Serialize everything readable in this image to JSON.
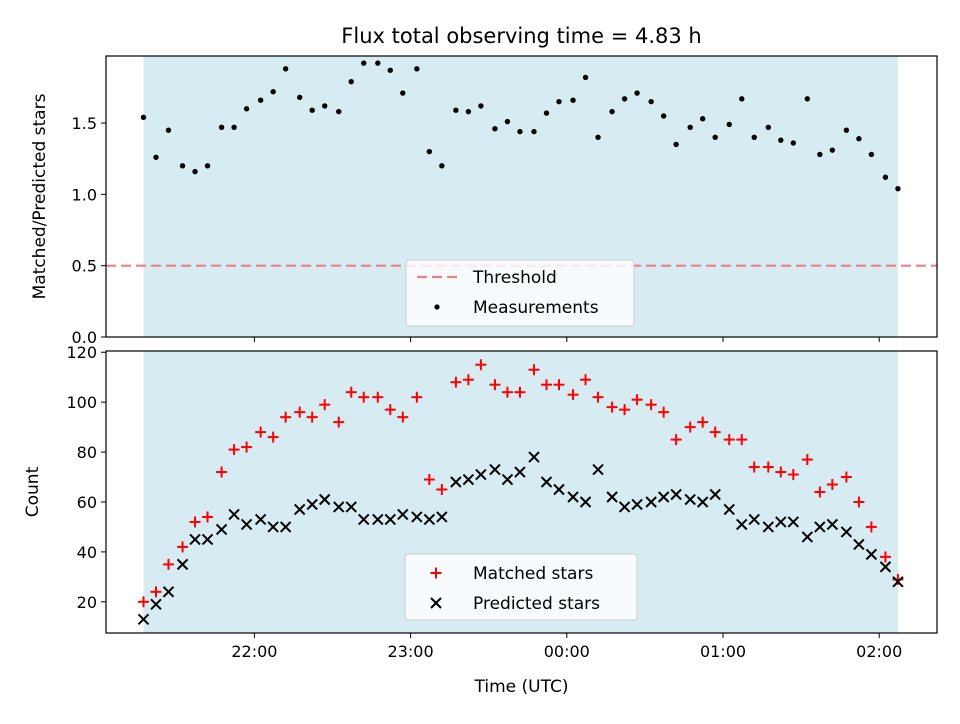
{
  "chart_data": [
    {
      "type": "scatter",
      "title": "Flux total observing time = 4.83 h",
      "xlabel": "",
      "ylabel": "Matched/Predicted stars",
      "ylim": [
        0,
        1.97
      ],
      "yticks": [
        "0.0",
        "0.5",
        "1.0",
        "1.5"
      ],
      "yticks_values": [
        0,
        0.5,
        1.0,
        1.5
      ],
      "shaded_interval_hours": [
        -2.71,
        2.12
      ],
      "threshold": {
        "name": "Threshold",
        "value": 0.5,
        "color": "#f08080"
      },
      "series": [
        {
          "name": "Measurements",
          "color": "#000000",
          "x": [
            -2.71,
            -2.63,
            -2.55,
            -2.46,
            -2.38,
            -2.3,
            -2.21,
            -2.13,
            -2.05,
            -1.96,
            -1.88,
            -1.8,
            -1.71,
            -1.63,
            -1.55,
            -1.46,
            -1.38,
            -1.3,
            -1.21,
            -1.13,
            -1.05,
            -0.96,
            -0.88,
            -0.8,
            -0.71,
            -0.63,
            -0.55,
            -0.46,
            -0.38,
            -0.3,
            -0.21,
            -0.13,
            -0.05,
            0.04,
            0.12,
            0.2,
            0.29,
            0.37,
            0.45,
            0.54,
            0.62,
            0.7,
            0.79,
            0.87,
            0.95,
            1.04,
            1.12,
            1.2,
            1.29,
            1.37,
            1.45,
            1.54,
            1.62,
            1.7,
            1.79,
            1.87,
            1.95,
            2.04,
            2.12
          ],
          "values": [
            1.54,
            1.26,
            1.45,
            1.2,
            1.16,
            1.2,
            1.47,
            1.47,
            1.6,
            1.66,
            1.72,
            1.88,
            1.68,
            1.59,
            1.62,
            1.58,
            1.79,
            1.92,
            1.92,
            1.87,
            1.71,
            1.88,
            1.3,
            1.2,
            1.59,
            1.58,
            1.62,
            1.46,
            1.51,
            1.44,
            1.44,
            1.57,
            1.65,
            1.66,
            1.82,
            1.4,
            1.58,
            1.67,
            1.71,
            1.65,
            1.55,
            1.35,
            1.47,
            1.53,
            1.4,
            1.49,
            1.67,
            1.4,
            1.47,
            1.38,
            1.36,
            1.67,
            1.28,
            1.31,
            1.45,
            1.39,
            1.28,
            1.12,
            1.04
          ]
        }
      ],
      "legend": {
        "placement": "lower-center",
        "entries": [
          "Threshold",
          "Measurements"
        ]
      }
    },
    {
      "type": "scatter",
      "title": "",
      "xlabel": "Time (UTC)",
      "ylabel": "Count",
      "ylim": [
        7.5,
        120.5
      ],
      "yticks": [
        "20",
        "40",
        "60",
        "80",
        "100",
        "120"
      ],
      "yticks_values": [
        20,
        40,
        60,
        80,
        100,
        120
      ],
      "xticks": [
        "22:00",
        "23:00",
        "00:00",
        "01:00",
        "02:00"
      ],
      "xticks_hours": [
        -2,
        -1,
        0,
        1,
        2
      ],
      "xlim_hours": [
        -2.95,
        2.37
      ],
      "shaded_interval_hours": [
        -2.71,
        2.12
      ],
      "series": [
        {
          "name": "Matched stars",
          "marker": "+",
          "color": "#ff0000",
          "x": [
            -2.71,
            -2.63,
            -2.55,
            -2.46,
            -2.38,
            -2.3,
            -2.21,
            -2.13,
            -2.05,
            -1.96,
            -1.88,
            -1.8,
            -1.71,
            -1.63,
            -1.55,
            -1.46,
            -1.38,
            -1.3,
            -1.21,
            -1.13,
            -1.05,
            -0.96,
            -0.88,
            -0.8,
            -0.71,
            -0.63,
            -0.55,
            -0.46,
            -0.38,
            -0.3,
            -0.21,
            -0.13,
            -0.05,
            0.04,
            0.12,
            0.2,
            0.29,
            0.37,
            0.45,
            0.54,
            0.62,
            0.7,
            0.79,
            0.87,
            0.95,
            1.04,
            1.12,
            1.2,
            1.29,
            1.37,
            1.45,
            1.54,
            1.62,
            1.7,
            1.79,
            1.87,
            1.95,
            2.04,
            2.12
          ],
          "values": [
            20,
            24,
            35,
            42,
            52,
            54,
            72,
            81,
            82,
            88,
            86,
            94,
            96,
            94,
            99,
            92,
            104,
            102,
            102,
            97,
            94,
            102,
            69,
            65,
            108,
            109,
            115,
            107,
            104,
            104,
            113,
            107,
            107,
            103,
            109,
            102,
            98,
            97,
            101,
            99,
            96,
            85,
            90,
            92,
            88,
            85,
            85,
            74,
            74,
            72,
            71,
            77,
            64,
            67,
            70,
            60,
            50,
            38,
            29
          ]
        },
        {
          "name": "Predicted stars",
          "marker": "x",
          "color": "#000000",
          "x": [
            -2.71,
            -2.63,
            -2.55,
            -2.46,
            -2.38,
            -2.3,
            -2.21,
            -2.13,
            -2.05,
            -1.96,
            -1.88,
            -1.8,
            -1.71,
            -1.63,
            -1.55,
            -1.46,
            -1.38,
            -1.3,
            -1.21,
            -1.13,
            -1.05,
            -0.96,
            -0.88,
            -0.8,
            -0.71,
            -0.63,
            -0.55,
            -0.46,
            -0.38,
            -0.3,
            -0.21,
            -0.13,
            -0.05,
            0.04,
            0.12,
            0.2,
            0.29,
            0.37,
            0.45,
            0.54,
            0.62,
            0.7,
            0.79,
            0.87,
            0.95,
            1.04,
            1.12,
            1.2,
            1.29,
            1.37,
            1.45,
            1.54,
            1.62,
            1.7,
            1.79,
            1.87,
            1.95,
            2.04,
            2.12
          ],
          "values": [
            13,
            19,
            24,
            35,
            45,
            45,
            49,
            55,
            51,
            53,
            50,
            50,
            57,
            59,
            61,
            58,
            58,
            53,
            53,
            53,
            55,
            54,
            53,
            54,
            68,
            69,
            71,
            73,
            69,
            72,
            78,
            68,
            65,
            62,
            60,
            73,
            62,
            58,
            59,
            60,
            62,
            63,
            61,
            60,
            63,
            57,
            51,
            53,
            50,
            52,
            52,
            46,
            50,
            51,
            48,
            43,
            39,
            34,
            28
          ]
        }
      ],
      "legend": {
        "placement": "lower-center",
        "entries": [
          "Matched stars",
          "Predicted stars"
        ]
      }
    }
  ]
}
